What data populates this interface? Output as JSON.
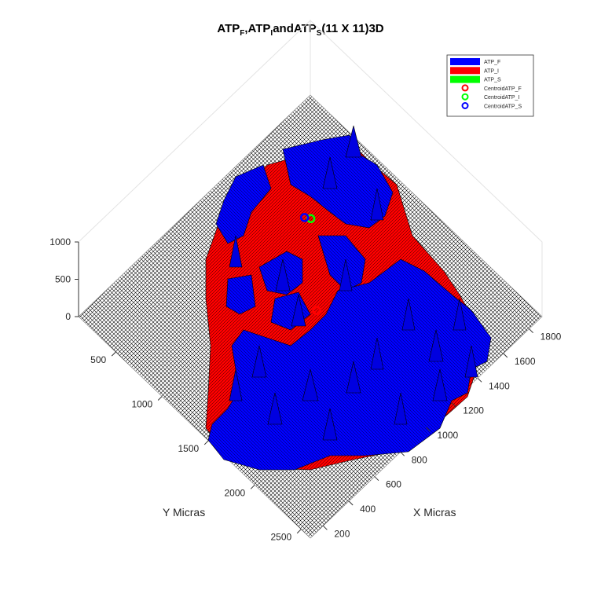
{
  "chart_data": {
    "type": "surface3d",
    "title_parts": [
      {
        "text": "ATP",
        "sub": "F"
      },
      {
        "text": ",ATP",
        "sub": "I"
      },
      {
        "text": "andATP",
        "sub": "S"
      },
      {
        "text": "(11 X 11)3D",
        "sub": ""
      }
    ],
    "xlabel": "X Micras",
    "ylabel": "Y Micras",
    "xticks": [
      200,
      400,
      600,
      800,
      1000,
      1200,
      1400,
      1600,
      1800
    ],
    "yticks": [
      500,
      1000,
      1500,
      2000,
      2500
    ],
    "zticks": [
      0,
      500,
      1000
    ],
    "xlim": [
      100,
      1900
    ],
    "ylim": [
      100,
      2600
    ],
    "zlim": [
      0,
      1000
    ],
    "legend_position": "top-right",
    "legend": [
      {
        "label": "ATP_F",
        "kind": "patch",
        "color": "#0000ff"
      },
      {
        "label": "ATP_I",
        "kind": "patch",
        "color": "#ff0000"
      },
      {
        "label": "ATP_S",
        "kind": "patch",
        "color": "#00ff00"
      },
      {
        "label": "CentroidATP_F",
        "kind": "marker",
        "color": "#ff0000"
      },
      {
        "label": "CentroidATP_I",
        "kind": "marker",
        "color": "#00ff00"
      },
      {
        "label": "CentroidATP_S",
        "kind": "marker",
        "color": "#0000ff"
      }
    ],
    "centroids": [
      {
        "name": "CentroidATP_F",
        "x": 1050,
        "y": 1350,
        "z": 0,
        "color": "#ff0000"
      },
      {
        "name": "CentroidATP_I",
        "x": 1400,
        "y": 800,
        "z": 0,
        "color": "#00ff00"
      },
      {
        "name": "CentroidATP_S",
        "x": 1380,
        "y": 760,
        "z": 0,
        "color": "#0000ff"
      }
    ],
    "colors": {
      "ATP_F": "#0000ff",
      "ATP_I": "#ff0000",
      "ATP_S": "#00ff00"
    },
    "grid": true
  }
}
